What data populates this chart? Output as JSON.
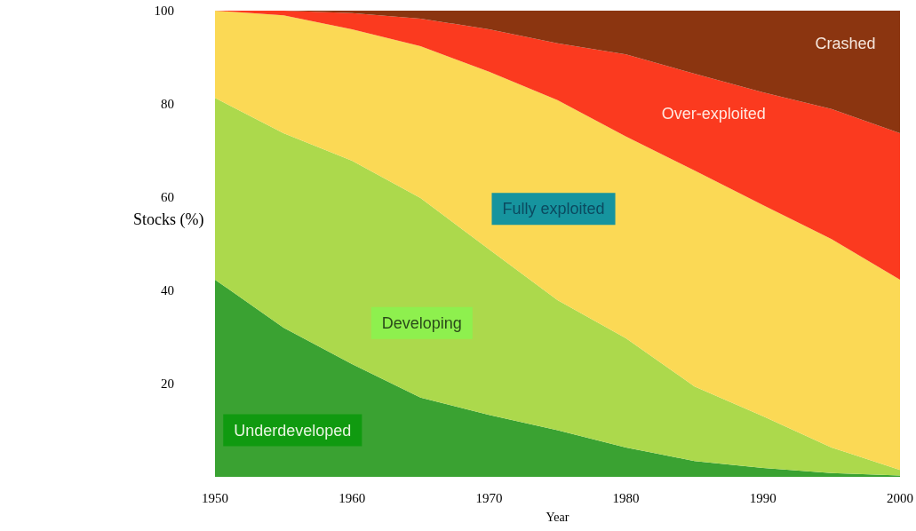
{
  "chart_data": {
    "type": "area",
    "stacked": true,
    "xlabel": "Year",
    "ylabel": "Stocks (%)",
    "x": [
      1950,
      1955,
      1960,
      1965,
      1970,
      1975,
      1980,
      1985,
      1990,
      1995,
      2000
    ],
    "xlim": [
      1950,
      2000
    ],
    "xticks": [
      1950,
      1960,
      1970,
      1980,
      1990,
      2000
    ],
    "ylim": [
      0,
      100
    ],
    "yticks": [
      20,
      40,
      60,
      80,
      100
    ],
    "grid": false,
    "legend": false,
    "series": [
      {
        "name": "Underdeveloped",
        "color": "#3aa232",
        "values": [
          42.3,
          32,
          24.2,
          17,
          13.3,
          10,
          6.3,
          3.4,
          1.9,
          0.8,
          0.3
        ]
      },
      {
        "name": "Developing",
        "color": "#acd94c",
        "values": [
          39,
          41.7,
          43.6,
          42.8,
          35.5,
          27.9,
          23.4,
          16,
          11.1,
          5.5,
          1.2
        ]
      },
      {
        "name": "Fully exploited",
        "color": "#fbd955",
        "values": [
          18.7,
          25.3,
          28.2,
          32.6,
          38.1,
          42.9,
          43.3,
          46.3,
          45.3,
          44.7,
          40.8
        ]
      },
      {
        "name": "Over-exploited",
        "color": "#fb3a1f",
        "values": [
          0,
          1,
          3.5,
          5.9,
          9.1,
          12.2,
          17.6,
          20.8,
          24.2,
          27.9,
          31.4
        ]
      },
      {
        "name": "Crashed",
        "color": "#8b3510",
        "values": [
          0,
          0,
          0.5,
          1.7,
          4,
          7,
          9.4,
          13.5,
          17.5,
          21.1,
          26.3
        ]
      }
    ]
  }
}
